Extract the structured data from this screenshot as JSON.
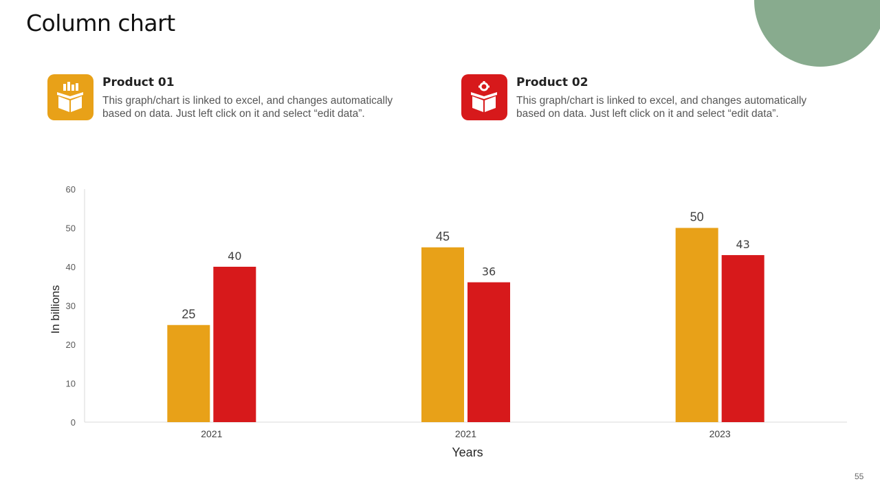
{
  "slide": {
    "title": "Column chart",
    "page_number": "55"
  },
  "products": [
    {
      "name": "Product 01",
      "description_line1": "This graph/chart is linked to excel, and changes automatically",
      "description_line2": "based on data. Just left click on it and select “edit data”.",
      "icon": "box-with-bars-icon",
      "color": "#e8a118"
    },
    {
      "name": "Product 02",
      "description_line1": "This graph/chart is linked to excel, and changes automatically",
      "description_line2": "based on data. Just left click on it and select “edit data”.",
      "icon": "box-with-gear-icon",
      "color": "#d7191b"
    }
  ],
  "chart_data": {
    "type": "bar",
    "categories": [
      "2021",
      "2021",
      "2023"
    ],
    "series": [
      {
        "name": "Product 01",
        "values": [
          25,
          45,
          50
        ],
        "color": "#e8a118"
      },
      {
        "name": "Product 02",
        "values": [
          40,
          36,
          43
        ],
        "color": "#d7191b"
      }
    ],
    "value_labels": [
      [
        "25",
        "45",
        "50"
      ],
      [
        "40",
        "36",
        "43"
      ]
    ],
    "xlabel": "Years",
    "ylabel": "In billions",
    "ylim": [
      0,
      60
    ],
    "yticks": [
      "0",
      "10",
      "20",
      "30",
      "40",
      "50",
      "60"
    ],
    "grid": false,
    "legend": "none"
  }
}
